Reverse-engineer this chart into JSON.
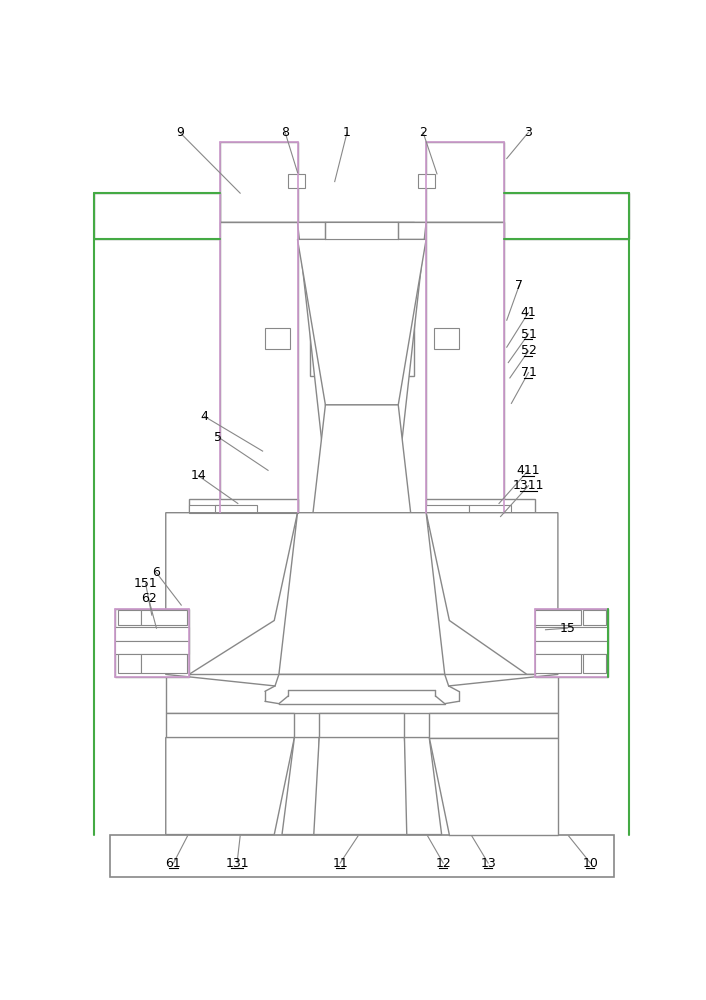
{
  "bg": "#ffffff",
  "lc": "#888888",
  "hc": "#cc99cc",
  "gc": "#44aa44",
  "fw": 7.06,
  "fh": 10.0,
  "dpi": 100
}
